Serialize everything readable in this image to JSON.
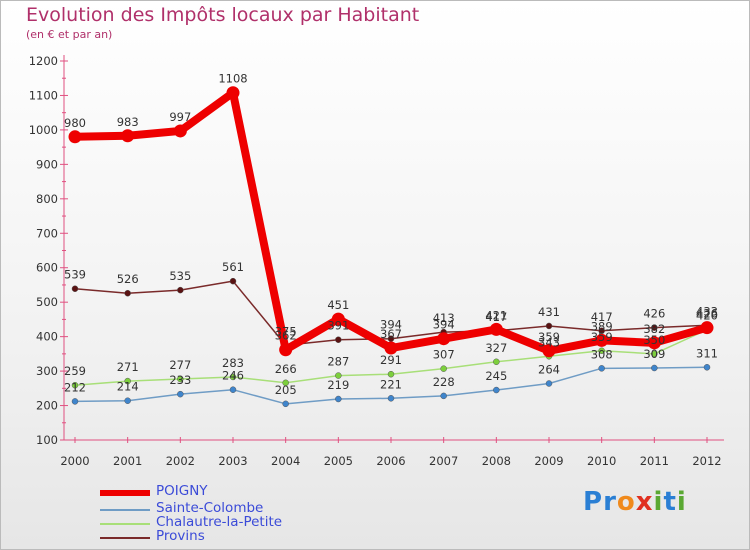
{
  "title": "Evolution des Impôts locaux par Habitant",
  "subtitle": "(en € et par an)",
  "logo": {
    "text": "Proxiti",
    "letters": [
      "P",
      "r",
      "o",
      "x",
      "i",
      "t",
      "i"
    ],
    "colors": [
      "#2a7fd4",
      "#2a7fd4",
      "#f08a1c",
      "#e03020",
      "#5aa832",
      "#2a7fd4",
      "#5aa832"
    ]
  },
  "chart_data": {
    "type": "line",
    "title": "Evolution des Impôts locaux par Habitant",
    "subtitle": "(en € et par an)",
    "xlabel": "",
    "ylabel": "",
    "x": [
      2000,
      2001,
      2002,
      2003,
      2004,
      2005,
      2006,
      2007,
      2008,
      2009,
      2010,
      2011,
      2012
    ],
    "x_tick_labels": [
      "2000",
      "2001",
      "2002",
      "2003",
      "2004",
      "2005",
      "2006",
      "2007",
      "2008",
      "2009",
      "2010",
      "2011",
      "2012"
    ],
    "ylim": [
      100,
      1200
    ],
    "y_ticks": [
      100,
      200,
      300,
      400,
      500,
      600,
      700,
      800,
      900,
      1000,
      1100,
      1200
    ],
    "y_tick_labels": [
      "100",
      "200",
      "300",
      "400",
      "500",
      "600",
      "700",
      "800",
      "900",
      "1000",
      "1100",
      "1200"
    ],
    "grid": false,
    "legend_position": "bottom-left",
    "series": [
      {
        "name": "Provins",
        "color": "#7a2a2a",
        "marker": "#5a1212",
        "values": [
          539,
          526,
          535,
          561,
          375,
          391,
          394,
          413,
          417,
          431,
          417,
          426,
          433
        ]
      },
      {
        "name": "Chalautre-la-Petite",
        "color": "#a8df78",
        "marker": "#7ccf3c",
        "values": [
          259,
          271,
          277,
          283,
          266,
          287,
          291,
          307,
          327,
          343,
          359,
          350,
          420
        ]
      },
      {
        "name": "Sainte-Colombe",
        "color": "#6f9cc5",
        "marker": "#3f85cc",
        "values": [
          212,
          214,
          233,
          246,
          205,
          219,
          221,
          228,
          245,
          264,
          308,
          309,
          311
        ]
      },
      {
        "name": "POIGNY",
        "color": "#ee0000",
        "marker": "#ee0000",
        "values": [
          980,
          983,
          997,
          1108,
          362,
          451,
          367,
          394,
          421,
          359,
          389,
          382,
          426
        ]
      }
    ],
    "point_labels": {
      "Provins": [
        "539",
        "526",
        "535",
        "561",
        "375",
        "391",
        "394",
        "413",
        "417",
        "431",
        "417",
        "426",
        "433"
      ],
      "Chalautre-la-Petite": [
        "259",
        "271",
        "277",
        "283",
        "266",
        "287",
        "291",
        "307",
        "327",
        "343",
        "359",
        "350",
        "420"
      ],
      "Sainte-Colombe": [
        "212",
        "214",
        "233",
        "246",
        "205",
        "219",
        "221",
        "228",
        "245",
        "264",
        "308",
        "309",
        "311"
      ],
      "POIGNY": [
        "980",
        "983",
        "997",
        "1108",
        "362",
        "451",
        "367",
        "394",
        "421",
        "359",
        "389",
        "382",
        "426"
      ]
    }
  },
  "legend": [
    {
      "name": "POIGNY",
      "color": "#ee0000",
      "thickness": "thick"
    },
    {
      "name": "Sainte-Colombe",
      "color": "#6f9cc5",
      "thickness": "thin"
    },
    {
      "name": "Chalautre-la-Petite",
      "color": "#a8df78",
      "thickness": "thin"
    },
    {
      "name": "Provins",
      "color": "#7a2a2a",
      "thickness": "thin"
    }
  ]
}
